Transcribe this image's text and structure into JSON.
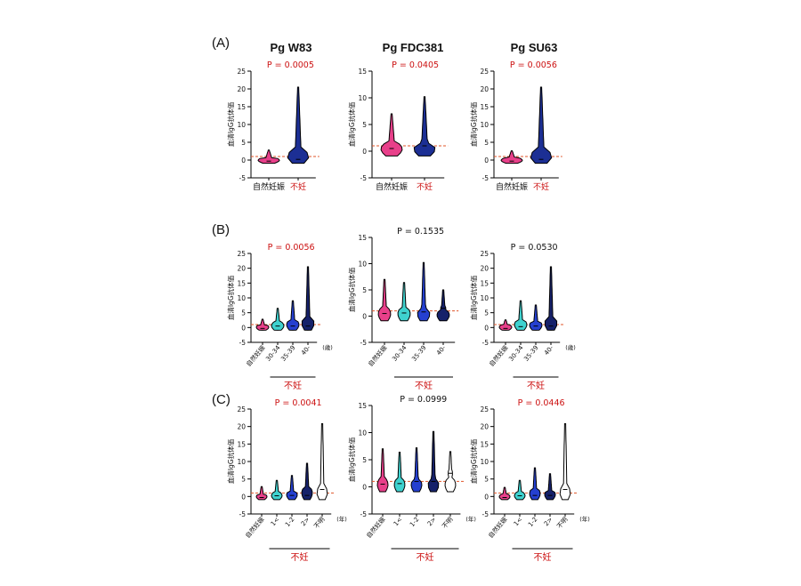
{
  "figure": {
    "row_labels": [
      "(A)",
      "(B)",
      "(C)"
    ],
    "column_titles": [
      "Pg W83",
      "Pg FDC381",
      "Pg SU63"
    ]
  },
  "colors": {
    "natural": "#e8408a",
    "age_30_34": "#3fd2cf",
    "age_35_39": "#2540d0",
    "age_40": "#16216a",
    "infertile": "#1c2f94",
    "unknown": "#ffffff",
    "significant_text": "#cc1111",
    "cutoff_line": "#e0552a"
  },
  "chart_data": [
    {
      "id": "A1",
      "type": "violin",
      "ylabel": "血清IgG抗体価",
      "ylim": [
        -5,
        25
      ],
      "yticks": [
        -5,
        0,
        5,
        10,
        15,
        20,
        25
      ],
      "p_value": "P = 0.0005",
      "significant": true,
      "cutoff": 1.0,
      "unit": "",
      "categories": [
        "自然妊娠",
        "不妊"
      ],
      "category_colors": [
        "natural",
        "infertile"
      ],
      "group_label": "",
      "violins": [
        {
          "min": -0.9,
          "max": 2.8,
          "median": -0.3
        },
        {
          "min": -0.9,
          "max": 20.5,
          "median": 0.2
        }
      ]
    },
    {
      "id": "A2",
      "type": "violin",
      "ylabel": "血清IgG抗体価",
      "ylim": [
        -5,
        15
      ],
      "yticks": [
        -5,
        0,
        5,
        10,
        15
      ],
      "p_value": "P = 0.0405",
      "significant": true,
      "cutoff": 1.0,
      "unit": "",
      "categories": [
        "自然妊娠",
        "不妊"
      ],
      "category_colors": [
        "natural",
        "infertile"
      ],
      "group_label": "",
      "violins": [
        {
          "min": -0.9,
          "max": 7.0,
          "median": 0.5
        },
        {
          "min": -0.9,
          "max": 10.2,
          "median": 1.0
        }
      ]
    },
    {
      "id": "A3",
      "type": "violin",
      "ylabel": "血清IgG抗体価",
      "ylim": [
        -5,
        25
      ],
      "yticks": [
        -5,
        0,
        5,
        10,
        15,
        20,
        25
      ],
      "p_value": "P = 0.0056",
      "significant": true,
      "cutoff": 1.0,
      "unit": "",
      "categories": [
        "自然妊娠",
        "不妊"
      ],
      "category_colors": [
        "natural",
        "infertile"
      ],
      "group_label": "",
      "violins": [
        {
          "min": -0.9,
          "max": 2.6,
          "median": -0.3
        },
        {
          "min": -0.9,
          "max": 20.5,
          "median": 0.2
        }
      ]
    },
    {
      "id": "B1",
      "type": "violin",
      "ylabel": "血清IgG抗体価",
      "ylim": [
        -5,
        25
      ],
      "yticks": [
        -5,
        0,
        5,
        10,
        15,
        20,
        25
      ],
      "p_value": "P = 0.0056",
      "significant": true,
      "cutoff": 1.0,
      "unit": "(歳)",
      "categories": [
        "自然妊娠",
        "30-34",
        "35-39",
        "40-"
      ],
      "category_colors": [
        "natural",
        "age_30_34",
        "age_35_39",
        "age_40"
      ],
      "group_label": "不妊",
      "violins": [
        {
          "min": -0.9,
          "max": 2.8,
          "median": -0.3
        },
        {
          "min": -0.9,
          "max": 6.5,
          "median": 0.5
        },
        {
          "min": -0.9,
          "max": 9.0,
          "median": 0.5
        },
        {
          "min": -0.9,
          "max": 20.5,
          "median": 0.5
        }
      ]
    },
    {
      "id": "B2",
      "type": "violin",
      "ylabel": "血清IgG抗体価",
      "ylim": [
        -5,
        15
      ],
      "yticks": [
        -5,
        0,
        5,
        10,
        15
      ],
      "p_value": "P = 0.1535",
      "significant": false,
      "cutoff": 1.0,
      "unit": "",
      "categories": [
        "自然妊娠",
        "30-34",
        "35-39",
        "40-"
      ],
      "category_colors": [
        "natural",
        "age_30_34",
        "age_35_39",
        "age_40"
      ],
      "group_label": "不妊",
      "violins": [
        {
          "min": -0.9,
          "max": 7.0,
          "median": 0.5
        },
        {
          "min": -0.9,
          "max": 6.4,
          "median": 0.6
        },
        {
          "min": -0.9,
          "max": 10.2,
          "median": 0.8
        },
        {
          "min": -0.9,
          "max": 5.0,
          "median": 1.5
        }
      ]
    },
    {
      "id": "B3",
      "type": "violin",
      "ylabel": "血清IgG抗体価",
      "ylim": [
        -5,
        25
      ],
      "yticks": [
        -5,
        0,
        5,
        10,
        15,
        20,
        25
      ],
      "p_value": "P = 0.0530",
      "significant": false,
      "cutoff": 1.0,
      "unit": "(歳)",
      "categories": [
        "自然妊娠",
        "30-34",
        "35-39",
        "40-"
      ],
      "category_colors": [
        "natural",
        "age_30_34",
        "age_35_39",
        "age_40"
      ],
      "group_label": "不妊",
      "violins": [
        {
          "min": -0.9,
          "max": 2.6,
          "median": -0.3
        },
        {
          "min": -0.9,
          "max": 9.0,
          "median": 0.3
        },
        {
          "min": -0.9,
          "max": 7.6,
          "median": 0.5
        },
        {
          "min": -0.9,
          "max": 20.5,
          "median": 0.5
        }
      ]
    },
    {
      "id": "C1",
      "type": "violin",
      "ylabel": "血清IgG抗体価",
      "ylim": [
        -5,
        25
      ],
      "yticks": [
        -5,
        0,
        5,
        10,
        15,
        20,
        25
      ],
      "p_value": "P = 0.0041",
      "significant": true,
      "cutoff": 1.0,
      "unit": "(年)",
      "categories": [
        "自然妊娠",
        "1<",
        "1-2",
        "2>",
        "不明"
      ],
      "category_colors": [
        "natural",
        "age_30_34",
        "age_35_39",
        "age_40",
        "unknown"
      ],
      "group_label": "不妊",
      "violins": [
        {
          "min": -0.9,
          "max": 2.8,
          "median": -0.3
        },
        {
          "min": -0.9,
          "max": 4.6,
          "median": 0.2
        },
        {
          "min": -0.9,
          "max": 6.0,
          "median": 0.3
        },
        {
          "min": -0.9,
          "max": 9.5,
          "median": 0.3
        },
        {
          "min": -0.9,
          "max": 20.8,
          "median": 2.0
        }
      ]
    },
    {
      "id": "C2",
      "type": "violin",
      "ylabel": "血清IgG抗体価",
      "ylim": [
        -5,
        15
      ],
      "yticks": [
        -5,
        0,
        5,
        10,
        15
      ],
      "p_value": "P = 0.0999",
      "significant": false,
      "cutoff": 1.0,
      "unit": "(年)",
      "categories": [
        "自然妊娠",
        "1<",
        "1-2",
        "2>",
        "不明"
      ],
      "category_colors": [
        "natural",
        "age_30_34",
        "age_35_39",
        "age_40",
        "unknown"
      ],
      "group_label": "不妊",
      "violins": [
        {
          "min": -0.9,
          "max": 7.0,
          "median": 0.5
        },
        {
          "min": -0.9,
          "max": 6.4,
          "median": 0.6
        },
        {
          "min": -0.9,
          "max": 7.2,
          "median": 1.0
        },
        {
          "min": -0.9,
          "max": 10.2,
          "median": 1.0
        },
        {
          "min": -0.9,
          "max": 6.5,
          "median": 2.5
        }
      ]
    },
    {
      "id": "C3",
      "type": "violin",
      "ylabel": "血清IgG抗体価",
      "ylim": [
        -5,
        25
      ],
      "yticks": [
        -5,
        0,
        5,
        10,
        15,
        20,
        25
      ],
      "p_value": "P = 0.0446",
      "significant": true,
      "cutoff": 1.0,
      "unit": "(年)",
      "categories": [
        "自然妊娠",
        "1<",
        "1-2",
        "2>",
        "不明"
      ],
      "category_colors": [
        "natural",
        "age_30_34",
        "age_35_39",
        "age_40",
        "unknown"
      ],
      "group_label": "不妊",
      "violins": [
        {
          "min": -0.9,
          "max": 2.6,
          "median": -0.3
        },
        {
          "min": -0.9,
          "max": 4.6,
          "median": 0.2
        },
        {
          "min": -0.9,
          "max": 8.2,
          "median": 0.3
        },
        {
          "min": -0.9,
          "max": 6.5,
          "median": 0.3
        },
        {
          "min": -0.9,
          "max": 20.8,
          "median": 2.0
        }
      ]
    }
  ]
}
